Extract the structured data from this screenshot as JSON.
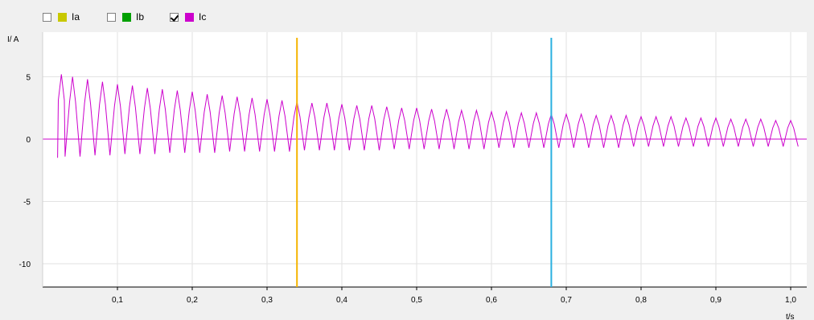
{
  "legend": {
    "items": [
      {
        "label": "Ia",
        "color": "#c8c800",
        "checked": false
      },
      {
        "label": "Ib",
        "color": "#00a000",
        "checked": false
      },
      {
        "label": "Ic",
        "color": "#cc00cc",
        "checked": true
      }
    ]
  },
  "chart_data": {
    "type": "line",
    "xlabel": "t/s",
    "ylabel": "I/ A",
    "xlim": [
      0.0,
      1.02
    ],
    "ylim": [
      -12,
      9
    ],
    "x_ticks": [
      0.1,
      0.2,
      0.3,
      0.4,
      0.5,
      0.6,
      0.7,
      0.8,
      0.9,
      1.0
    ],
    "x_tick_labels": [
      "0,1",
      "0,2",
      "0,3",
      "0,4",
      "0,5",
      "0,6",
      "0,7",
      "0,8",
      "0,9",
      "1,0"
    ],
    "y_ticks": [
      5,
      0,
      -5,
      -10
    ],
    "y_tick_labels": [
      "5",
      "0",
      "-5",
      "-10"
    ],
    "grid": true,
    "cursors": [
      {
        "x": 0.34,
        "color": "#f5b400"
      },
      {
        "x": 0.68,
        "color": "#2ab0e0"
      }
    ],
    "series": [
      {
        "name": "Ic",
        "color": "#cc00cc",
        "x": [
          0.02,
          0.03,
          0.05,
          0.07,
          0.09,
          0.11,
          0.13,
          0.15,
          0.17,
          0.19,
          0.21,
          0.23,
          0.25,
          0.27,
          0.29,
          0.31,
          0.33,
          0.35,
          0.37,
          0.39,
          0.41,
          0.43,
          0.45,
          0.47,
          0.49,
          0.51,
          0.53,
          0.55,
          0.57,
          0.59,
          0.61,
          0.63,
          0.65,
          0.67,
          0.69,
          0.71,
          0.73,
          0.75,
          0.77,
          0.79,
          0.81,
          0.83,
          0.85,
          0.87,
          0.89,
          0.91,
          0.93,
          0.95,
          0.97,
          0.99,
          1.01
        ],
        "y_peak": [
          0,
          5.2,
          5.0,
          4.8,
          4.6,
          4.4,
          4.3,
          4.1,
          4.0,
          3.9,
          3.8,
          3.6,
          3.5,
          3.4,
          3.3,
          3.2,
          3.1,
          3.0,
          2.9,
          2.9,
          2.8,
          2.7,
          2.7,
          2.6,
          2.5,
          2.5,
          2.4,
          2.4,
          2.3,
          2.3,
          2.2,
          2.2,
          2.1,
          2.1,
          2.0,
          2.0,
          2.0,
          1.9,
          1.9,
          1.9,
          1.8,
          1.8,
          1.8,
          1.7,
          1.7,
          1.7,
          1.6,
          1.6,
          1.6,
          1.5,
          1.5
        ],
        "y_trough": [
          -1.5,
          -1.4,
          -1.4,
          -1.3,
          -1.3,
          -1.2,
          -1.2,
          -1.2,
          -1.1,
          -1.1,
          -1.1,
          -1.1,
          -1.0,
          -1.0,
          -1.0,
          -1.0,
          -1.0,
          -0.9,
          -0.9,
          -0.9,
          -0.9,
          -0.9,
          -0.9,
          -0.8,
          -0.8,
          -0.8,
          -0.8,
          -0.8,
          -0.8,
          -0.8,
          -0.7,
          -0.7,
          -0.7,
          -0.7,
          -0.7,
          -0.7,
          -0.7,
          -0.7,
          -0.7,
          -0.6,
          -0.6,
          -0.6,
          -0.6,
          -0.6,
          -0.6,
          -0.6,
          -0.6,
          -0.6,
          -0.6,
          -0.6,
          -0.6
        ]
      }
    ]
  }
}
